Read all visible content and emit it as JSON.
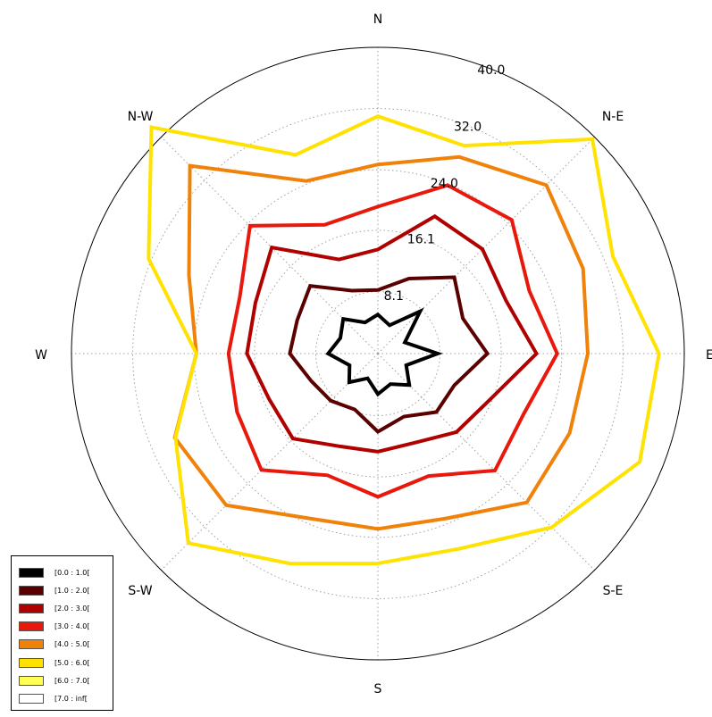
{
  "chart_data": {
    "type": "polar-line",
    "title": "",
    "directions": [
      "N",
      "N-E",
      "E",
      "S-E",
      "S",
      "S-W",
      "W",
      "N-W"
    ],
    "radial_ticks": [
      "8.1",
      "16.1",
      "24.0",
      "32.0",
      "40.0"
    ],
    "radial_tick_values": [
      8.1,
      16.1,
      24.0,
      32.0,
      40.0
    ],
    "rmax": 40.0,
    "angles_deg": [
      0,
      22.5,
      45,
      67.5,
      90,
      112.5,
      135,
      157.5,
      180,
      202.5,
      225,
      247.5,
      270,
      292.5,
      315,
      337.5
    ],
    "grid": true,
    "legend_position": "bottom-left",
    "series": [
      {
        "name": "[0.0 : 1.0[",
        "color": "#000000",
        "values": [
          5.1,
          4.0,
          7.8,
          3.8,
          7.8,
          4.0,
          5.8,
          4.3,
          5.3,
          3.5,
          5.3,
          4.0,
          6.5,
          5.3,
          6.4,
          4.4
        ]
      },
      {
        "name": "[1.0 : 2.0[",
        "color": "#5a0000",
        "values": [
          8.3,
          10.6,
          14.1,
          12.0,
          14.3,
          10.8,
          10.8,
          8.9,
          10.2,
          7.9,
          8.7,
          9.4,
          11.5,
          11.4,
          12.5,
          8.9
        ]
      },
      {
        "name": "[2.0 : 3.0[",
        "color": "#b00000",
        "values": [
          13.6,
          19.4,
          19.3,
          18.1,
          20.7,
          15.8,
          14.5,
          12.6,
          12.8,
          13.1,
          15.7,
          15.4,
          17.1,
          17.3,
          19.6,
          13.3
        ]
      },
      {
        "name": "[3.0 : 4.0[",
        "color": "#e8190c",
        "values": [
          19.2,
          23.8,
          24.7,
          21.4,
          23.4,
          20.6,
          21.6,
          17.3,
          18.7,
          17.2,
          21.5,
          19.9,
          19.5,
          19.5,
          23.6,
          18.2
        ]
      },
      {
        "name": "[4.0 : 5.0[",
        "color": "#f0820a",
        "values": [
          24.7,
          27.8,
          31.1,
          29.0,
          27.4,
          27.1,
          27.5,
          23.3,
          22.9,
          23.3,
          28.0,
          28.7,
          23.7,
          26.7,
          34.7,
          24.4
        ]
      },
      {
        "name": "[5.0 : 6.0[",
        "color": "#ffe200",
        "values": [
          31.0,
          29.4,
          39.6,
          33.2,
          36.7,
          37.0,
          32.1,
          27.6,
          27.4,
          29.7,
          35.0,
          28.6,
          23.7,
          32.4,
          41.8,
          28.1
        ]
      },
      {
        "name": "[6.0 : 7.0[",
        "color": "#ffff55",
        "values": []
      },
      {
        "name": "[7.0 : inf[",
        "color": "#ffffff",
        "values": []
      }
    ]
  }
}
